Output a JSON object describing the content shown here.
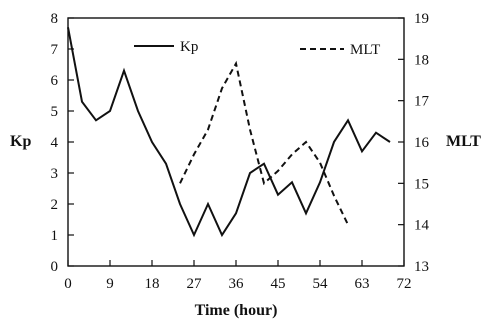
{
  "chart_data": {
    "type": "line",
    "xlabel": "Time (hour)",
    "ylabel": "Kp",
    "y2label": "MLT",
    "xlim": [
      0,
      72
    ],
    "ylim": [
      0,
      8
    ],
    "y2lim": [
      13,
      19
    ],
    "x_ticks": [
      0,
      9,
      18,
      27,
      36,
      45,
      54,
      63,
      72
    ],
    "x_tick_labels": [
      "0",
      "9",
      "18",
      "27",
      "36",
      "45",
      "54",
      "63",
      "72"
    ],
    "y_ticks": [
      0,
      1,
      2,
      3,
      4,
      5,
      6,
      7,
      8
    ],
    "y_tick_labels": [
      "0",
      "1",
      "2",
      "3",
      "4",
      "5",
      "6",
      "7",
      "8"
    ],
    "y2_ticks": [
      13,
      14,
      15,
      16,
      17,
      18,
      19
    ],
    "y2_tick_labels": [
      "13",
      "14",
      "15",
      "16",
      "17",
      "18",
      "19"
    ],
    "legend": [
      {
        "label": "Kp",
        "style": "solid"
      },
      {
        "label": "MLT",
        "style": "dashed"
      }
    ],
    "series": [
      {
        "name": "Kp",
        "axis": "left",
        "style": "solid",
        "x": [
          0,
          3,
          6,
          9,
          12,
          15,
          18,
          21,
          24,
          27,
          30,
          33,
          36,
          39,
          42,
          45,
          48,
          51,
          54,
          57,
          60,
          63,
          66,
          69
        ],
        "y": [
          7.7,
          5.3,
          4.7,
          5.0,
          6.3,
          5.0,
          4.0,
          3.3,
          2.0,
          1.0,
          2.0,
          1.0,
          1.7,
          3.0,
          3.3,
          2.3,
          2.7,
          1.7,
          2.7,
          4.0,
          4.7,
          3.7,
          4.3,
          4.0
        ]
      },
      {
        "name": "MLT",
        "axis": "right",
        "style": "dashed",
        "x": [
          24,
          27,
          30,
          33,
          36,
          39,
          42,
          45,
          48,
          51,
          54,
          57,
          60
        ],
        "y": [
          15.0,
          15.7,
          16.3,
          17.3,
          17.9,
          16.3,
          15.0,
          15.3,
          15.7,
          16.0,
          15.5,
          14.7,
          14.0
        ]
      }
    ]
  }
}
